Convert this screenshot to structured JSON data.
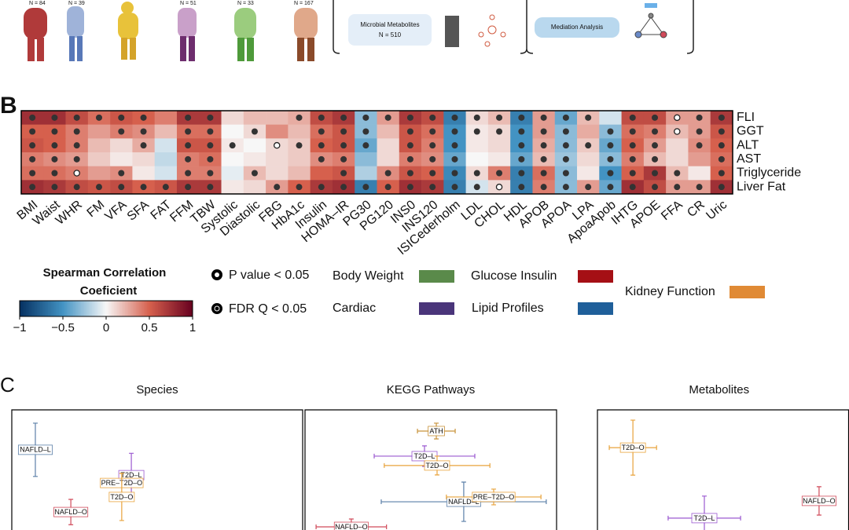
{
  "panel_a": {
    "groups": [
      "N = 84",
      "N = 39",
      "N = 51",
      "N = 33",
      "N = 167"
    ],
    "metabolites": [
      "Microbial Metabolites",
      "N = 510"
    ],
    "mediation": "Mediation Analysis"
  },
  "panel_labels": [
    "B",
    "C"
  ],
  "chart_data": [
    {
      "type": "heatmap",
      "rows": [
        "FLI",
        "GGT",
        "ALT",
        "AST",
        "Triglyceride",
        "Liver Fat"
      ],
      "columns": [
        "BMI",
        "Waist",
        "WHR",
        "FM",
        "VFA",
        "SFA",
        "FAT",
        "FFM",
        "TBW",
        "Systolic",
        "Diastolic",
        "FBG",
        "HbA1c",
        "Insulin",
        "HOMA–IR",
        "PG30",
        "PG120",
        "INS0",
        "INS120",
        "ISICederholm",
        "LDL",
        "CHOL",
        "HDL",
        "APOB",
        "APOA",
        "LPA",
        "ApoaApob",
        "IHTG",
        "APOE",
        "FFA",
        "CR",
        "Uric"
      ],
      "column_groups": [
        0,
        0,
        0,
        0,
        0,
        0,
        0,
        0,
        0,
        1,
        1,
        2,
        2,
        2,
        2,
        2,
        2,
        2,
        2,
        2,
        3,
        3,
        3,
        3,
        3,
        3,
        3,
        3,
        3,
        3,
        4,
        4
      ],
      "values": [
        [
          0.75,
          0.75,
          0.6,
          0.45,
          0.55,
          0.5,
          0.4,
          0.7,
          0.7,
          0.1,
          0.2,
          0.2,
          0.25,
          0.6,
          0.7,
          -0.3,
          0.3,
          0.7,
          0.6,
          -0.6,
          0.1,
          0.2,
          -0.6,
          0.3,
          -0.4,
          0.2,
          -0.1,
          0.6,
          0.6,
          0.3,
          0.3,
          0.7
        ],
        [
          0.5,
          0.5,
          0.4,
          0.3,
          0.4,
          0.35,
          0.2,
          0.45,
          0.45,
          0,
          0.1,
          0.35,
          0.2,
          0.45,
          0.55,
          -0.3,
          0.2,
          0.55,
          0.45,
          -0.5,
          0.05,
          0.1,
          -0.5,
          0.3,
          -0.3,
          0.25,
          -0.3,
          0.45,
          0.4,
          0.2,
          0.3,
          0.55
        ],
        [
          0.55,
          0.5,
          0.4,
          0.2,
          0.1,
          0.25,
          -0.1,
          0.55,
          0.55,
          0.05,
          0,
          0.1,
          0.15,
          0.5,
          0.55,
          -0.4,
          0.1,
          0.55,
          0.4,
          -0.5,
          0.05,
          0.1,
          -0.5,
          0.25,
          -0.3,
          0.15,
          -0.4,
          0.5,
          0.3,
          0.1,
          0.35,
          0.5
        ],
        [
          0.4,
          0.35,
          0.3,
          0.15,
          0.05,
          0.1,
          -0.15,
          0.4,
          0.45,
          0,
          0.05,
          0.1,
          0.15,
          0.35,
          0.4,
          -0.3,
          0.1,
          0.4,
          0.35,
          -0.4,
          0,
          0.05,
          -0.4,
          0.2,
          -0.25,
          0.1,
          -0.3,
          0.4,
          0.2,
          0.1,
          0.3,
          0.45
        ],
        [
          0.45,
          0.45,
          0.4,
          0.3,
          0.35,
          0.05,
          -0.1,
          0.4,
          0.4,
          -0.05,
          0.2,
          0.1,
          0.2,
          0.5,
          0.55,
          -0.2,
          0.35,
          0.55,
          0.5,
          -0.55,
          0.1,
          0.4,
          -0.6,
          0.45,
          -0.3,
          0.05,
          -0.5,
          0.5,
          0.7,
          0.2,
          0.05,
          0.5
        ],
        [
          0.75,
          0.7,
          0.6,
          0.55,
          0.6,
          0.5,
          0.55,
          0.7,
          0.7,
          0.05,
          0.1,
          0.3,
          0.5,
          0.7,
          0.75,
          -0.6,
          0.5,
          0.75,
          0.7,
          -0.6,
          -0.1,
          0.1,
          -0.6,
          0.4,
          -0.3,
          0.3,
          -0.4,
          0.75,
          0.6,
          0.3,
          0.3,
          0.75
        ]
      ],
      "markers": [
        [
          2,
          2,
          2,
          2,
          2,
          2,
          0,
          2,
          2,
          0,
          0,
          0,
          2,
          2,
          2,
          2,
          2,
          2,
          2,
          2,
          2,
          2,
          2,
          2,
          2,
          2,
          0,
          2,
          2,
          1,
          2,
          2
        ],
        [
          2,
          2,
          2,
          0,
          2,
          2,
          0,
          2,
          2,
          0,
          2,
          0,
          0,
          2,
          2,
          2,
          0,
          2,
          2,
          2,
          2,
          2,
          2,
          2,
          2,
          0,
          2,
          2,
          2,
          1,
          2,
          2
        ],
        [
          2,
          2,
          2,
          0,
          0,
          2,
          0,
          2,
          2,
          2,
          0,
          1,
          2,
          2,
          2,
          2,
          0,
          2,
          2,
          2,
          0,
          0,
          2,
          2,
          2,
          2,
          2,
          2,
          2,
          0,
          2,
          2
        ],
        [
          2,
          2,
          2,
          0,
          0,
          0,
          0,
          2,
          2,
          0,
          0,
          0,
          0,
          2,
          2,
          0,
          0,
          2,
          2,
          2,
          0,
          0,
          2,
          2,
          2,
          0,
          2,
          2,
          2,
          0,
          0,
          2
        ],
        [
          2,
          2,
          1,
          0,
          2,
          0,
          0,
          2,
          2,
          0,
          2,
          0,
          0,
          0,
          2,
          0,
          2,
          2,
          2,
          2,
          2,
          2,
          2,
          2,
          2,
          0,
          2,
          2,
          2,
          2,
          0,
          2
        ],
        [
          2,
          2,
          2,
          2,
          2,
          2,
          2,
          2,
          2,
          0,
          0,
          2,
          2,
          2,
          2,
          2,
          2,
          2,
          2,
          2,
          2,
          1,
          2,
          2,
          2,
          2,
          2,
          2,
          2,
          2,
          2,
          2
        ]
      ],
      "clim": [
        -1,
        1
      ],
      "colorbar_title": [
        "Spearman Correlation",
        "Coeficient"
      ],
      "colorbar_ticks": [
        {
          "value": -1,
          "label": "−1"
        },
        {
          "value": -0.5,
          "label": "−0.5"
        },
        0,
        0.5,
        1
      ],
      "marker_legend": [
        "P value < 0.05",
        "FDR Q < 0.05"
      ],
      "groups": [
        {
          "name": "Body Weight",
          "color": "#5a8a4a"
        },
        {
          "name": "Cardiac",
          "color": "#4a357a"
        },
        {
          "name": "Glucose Insulin",
          "color": "#a50f15"
        },
        {
          "name": "Lipid Profiles",
          "color": "#1f5f9a"
        },
        {
          "name": "Kidney Function",
          "color": "#e08a35"
        }
      ]
    },
    {
      "type": "errorbar-scatter",
      "title": "Species",
      "xlim": [
        0,
        100
      ],
      "ylim": [
        0,
        100
      ],
      "points": [
        {
          "label": "NAFLD–L",
          "color": "#5b7fa8",
          "x": 8.1,
          "y": 81.7,
          "xerr": 0,
          "yerr": 12.2
        },
        {
          "label": "T2D–L",
          "color": "#9b59d0",
          "x": 41.1,
          "y": 70.1,
          "xerr": 0,
          "yerr": 10
        },
        {
          "label": "PRE–T2D–O",
          "color": "#e8a33c",
          "x": 37.8,
          "y": 66.5,
          "xerr": 0,
          "yerr": 0
        },
        {
          "label": "T2D–O",
          "color": "#e8a33c",
          "x": 37.8,
          "y": 60.1,
          "xerr": 0,
          "yerr": 10.8
        },
        {
          "label": "NAFLD–O",
          "color": "#d04a5a",
          "x": 20.3,
          "y": 53.2,
          "xerr": 0,
          "yerr": 5.8
        }
      ]
    },
    {
      "type": "errorbar-scatter",
      "title": "KEGG Pathways",
      "xlim": [
        0,
        100
      ],
      "ylim": [
        0,
        100
      ],
      "points": [
        {
          "label": "ATH",
          "color": "#c8923a",
          "x": 52.2,
          "y": 90.3,
          "xerr": 7.5,
          "yerr": 3.6
        },
        {
          "label": "T2D–L",
          "color": "#9b59d0",
          "x": 47.5,
          "y": 78.8,
          "xerr": 20,
          "yerr": 4.7
        },
        {
          "label": "T2D–O",
          "color": "#e8a33c",
          "x": 52.5,
          "y": 74.5,
          "xerr": 21,
          "yerr": 4.3
        },
        {
          "label": "NAFLD–L",
          "color": "#5b7fa8",
          "x": 63.1,
          "y": 57.9,
          "xerr": 32.8,
          "yerr": 9
        },
        {
          "label": "PRE–T2D–O",
          "color": "#e8a33c",
          "x": 75,
          "y": 60.1,
          "xerr": 18.8,
          "yerr": 3.6
        },
        {
          "label": "NAFLD–O",
          "color": "#d04a5a",
          "x": 18.4,
          "y": 46.4,
          "xerr": 14,
          "yerr": 3.6
        }
      ]
    },
    {
      "type": "errorbar-scatter",
      "title": "Metabolites",
      "xlim": [
        0,
        100
      ],
      "ylim": [
        0,
        100
      ],
      "points": [
        {
          "label": "T2D–O",
          "color": "#e8a33c",
          "x": 14.1,
          "y": 82.7,
          "xerr": 9.4,
          "yerr": 12.6
        },
        {
          "label": "NAFLD–O",
          "color": "#d04a5a",
          "x": 88.1,
          "y": 58.3,
          "xerr": 0,
          "yerr": 6.5
        },
        {
          "label": "T2D–L",
          "color": "#9b59d0",
          "x": 42.5,
          "y": 50.4,
          "xerr": 14.4,
          "yerr": 10.1
        }
      ]
    }
  ]
}
